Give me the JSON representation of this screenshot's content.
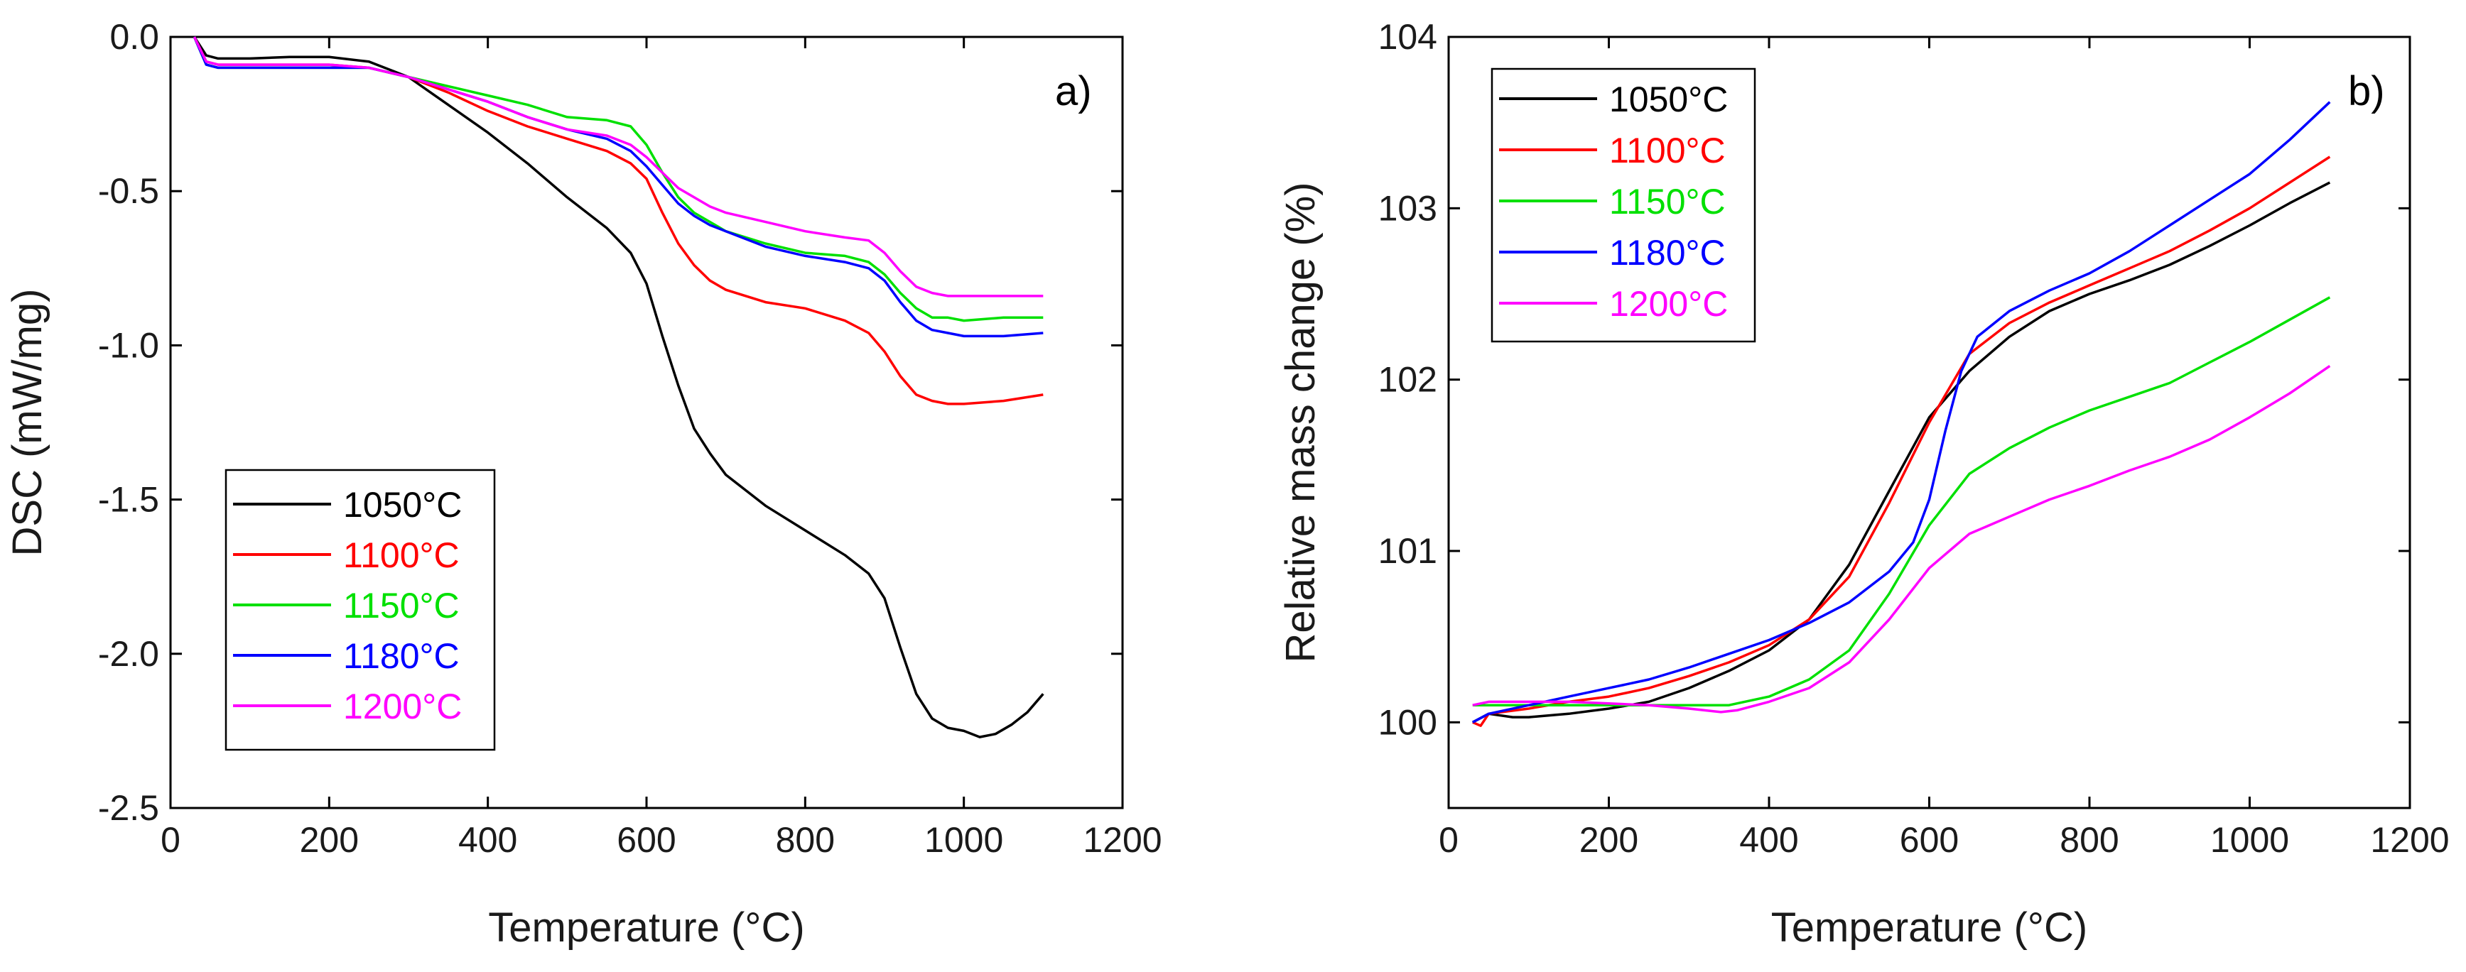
{
  "chart_data": [
    {
      "type": "line",
      "panel_label": "a)",
      "title": "",
      "xlabel": "Temperature (°C)",
      "ylabel": "DSC (mW/mg)",
      "xlim": [
        0,
        1200
      ],
      "ylim": [
        -2.5,
        0.0
      ],
      "xticks": [
        0,
        200,
        400,
        600,
        800,
        1000,
        1200
      ],
      "xtick_labels": [
        "0",
        "200",
        "400",
        "600",
        "800",
        "1000",
        "1200"
      ],
      "yticks": [
        0.0,
        -0.5,
        -1.0,
        -1.5,
        -2.0,
        -2.5
      ],
      "ytick_labels": [
        "0.0",
        "-0.5",
        "-1.0",
        "-1.5",
        "-2.0",
        "-2.5"
      ],
      "legend_position": "bottom-left",
      "grid": false,
      "series": [
        {
          "name": "1050°C",
          "color": "#000000",
          "x": [
            30,
            45,
            60,
            100,
            150,
            200,
            250,
            300,
            350,
            400,
            450,
            500,
            550,
            580,
            600,
            620,
            640,
            660,
            680,
            700,
            750,
            800,
            850,
            880,
            900,
            920,
            940,
            960,
            980,
            1000,
            1020,
            1040,
            1060,
            1080,
            1100
          ],
          "y": [
            0,
            -0.06,
            -0.07,
            -0.07,
            -0.065,
            -0.065,
            -0.08,
            -0.13,
            -0.22,
            -0.31,
            -0.41,
            -0.52,
            -0.62,
            -0.7,
            -0.8,
            -0.97,
            -1.13,
            -1.27,
            -1.35,
            -1.42,
            -1.52,
            -1.6,
            -1.68,
            -1.74,
            -1.82,
            -1.98,
            -2.13,
            -2.21,
            -2.24,
            -2.25,
            -2.27,
            -2.26,
            -2.23,
            -2.19,
            -2.13
          ]
        },
        {
          "name": "1100°C",
          "color": "#ff0000",
          "x": [
            30,
            45,
            60,
            100,
            150,
            200,
            250,
            300,
            350,
            400,
            450,
            500,
            550,
            580,
            600,
            620,
            640,
            660,
            680,
            700,
            750,
            800,
            850,
            880,
            900,
            920,
            940,
            960,
            980,
            1000,
            1050,
            1100
          ],
          "y": [
            0,
            -0.08,
            -0.09,
            -0.09,
            -0.09,
            -0.09,
            -0.1,
            -0.13,
            -0.18,
            -0.24,
            -0.29,
            -0.33,
            -0.37,
            -0.41,
            -0.46,
            -0.57,
            -0.67,
            -0.74,
            -0.79,
            -0.82,
            -0.86,
            -0.88,
            -0.92,
            -0.96,
            -1.02,
            -1.1,
            -1.16,
            -1.18,
            -1.19,
            -1.19,
            -1.18,
            -1.16
          ]
        },
        {
          "name": "1150°C",
          "color": "#00e000",
          "x": [
            30,
            45,
            60,
            100,
            150,
            200,
            250,
            300,
            350,
            400,
            450,
            500,
            550,
            580,
            600,
            620,
            640,
            660,
            680,
            700,
            750,
            800,
            850,
            880,
            900,
            920,
            940,
            960,
            980,
            1000,
            1050,
            1100
          ],
          "y": [
            0,
            -0.09,
            -0.1,
            -0.1,
            -0.1,
            -0.1,
            -0.1,
            -0.13,
            -0.16,
            -0.19,
            -0.22,
            -0.26,
            -0.27,
            -0.29,
            -0.35,
            -0.44,
            -0.52,
            -0.57,
            -0.6,
            -0.63,
            -0.67,
            -0.7,
            -0.71,
            -0.73,
            -0.77,
            -0.83,
            -0.88,
            -0.91,
            -0.91,
            -0.92,
            -0.91,
            -0.91
          ]
        },
        {
          "name": "1180°C",
          "color": "#0000ff",
          "x": [
            30,
            45,
            60,
            100,
            150,
            200,
            250,
            300,
            350,
            400,
            450,
            500,
            550,
            580,
            600,
            620,
            640,
            660,
            680,
            700,
            750,
            800,
            850,
            880,
            900,
            920,
            940,
            960,
            980,
            1000,
            1050,
            1100
          ],
          "y": [
            0,
            -0.09,
            -0.1,
            -0.1,
            -0.1,
            -0.1,
            -0.1,
            -0.13,
            -0.17,
            -0.21,
            -0.26,
            -0.3,
            -0.33,
            -0.37,
            -0.42,
            -0.48,
            -0.54,
            -0.58,
            -0.61,
            -0.63,
            -0.68,
            -0.71,
            -0.73,
            -0.75,
            -0.79,
            -0.86,
            -0.92,
            -0.95,
            -0.96,
            -0.97,
            -0.97,
            -0.96
          ]
        },
        {
          "name": "1200°C",
          "color": "#ff00ff",
          "x": [
            30,
            45,
            60,
            100,
            150,
            200,
            250,
            300,
            350,
            400,
            450,
            500,
            550,
            580,
            600,
            620,
            640,
            660,
            680,
            700,
            750,
            800,
            850,
            880,
            900,
            920,
            940,
            960,
            980,
            1000,
            1050,
            1100
          ],
          "y": [
            0,
            -0.08,
            -0.09,
            -0.09,
            -0.09,
            -0.09,
            -0.1,
            -0.13,
            -0.17,
            -0.21,
            -0.26,
            -0.3,
            -0.32,
            -0.35,
            -0.39,
            -0.44,
            -0.49,
            -0.52,
            -0.55,
            -0.57,
            -0.6,
            -0.63,
            -0.65,
            -0.66,
            -0.7,
            -0.76,
            -0.81,
            -0.83,
            -0.84,
            -0.84,
            -0.84,
            -0.84
          ]
        }
      ]
    },
    {
      "type": "line",
      "panel_label": "b)",
      "title": "",
      "xlabel": "Temperature (°C)",
      "ylabel": "Relative mass change (%)",
      "xlim": [
        0,
        1200
      ],
      "ylim": [
        99.5,
        104
      ],
      "xticks": [
        0,
        200,
        400,
        600,
        800,
        1000,
        1200
      ],
      "xtick_labels": [
        "0",
        "200",
        "400",
        "600",
        "800",
        "1000",
        "1200"
      ],
      "yticks": [
        100,
        101,
        102,
        103,
        104
      ],
      "ytick_labels": [
        "100",
        "101",
        "102",
        "103",
        "104"
      ],
      "legend_position": "top-left",
      "grid": false,
      "series": [
        {
          "name": "1050°C",
          "color": "#000000",
          "x": [
            30,
            50,
            80,
            100,
            150,
            200,
            250,
            300,
            350,
            400,
            450,
            500,
            550,
            600,
            650,
            700,
            750,
            800,
            850,
            900,
            950,
            1000,
            1050,
            1100
          ],
          "y": [
            100.0,
            100.05,
            100.03,
            100.03,
            100.05,
            100.08,
            100.12,
            100.2,
            100.3,
            100.42,
            100.6,
            100.92,
            101.35,
            101.78,
            102.05,
            102.25,
            102.4,
            102.5,
            102.58,
            102.67,
            102.78,
            102.9,
            103.03,
            103.15
          ]
        },
        {
          "name": "1100°C",
          "color": "#ff0000",
          "x": [
            30,
            40,
            50,
            100,
            150,
            200,
            250,
            300,
            350,
            400,
            450,
            500,
            550,
            600,
            650,
            700,
            750,
            800,
            850,
            900,
            950,
            1000,
            1050,
            1100
          ],
          "y": [
            100.0,
            99.98,
            100.05,
            100.08,
            100.12,
            100.15,
            100.2,
            100.27,
            100.35,
            100.45,
            100.6,
            100.85,
            101.28,
            101.75,
            102.15,
            102.33,
            102.45,
            102.55,
            102.65,
            102.75,
            102.87,
            103.0,
            103.15,
            103.3
          ]
        },
        {
          "name": "1150°C",
          "color": "#00e000",
          "x": [
            30,
            50,
            100,
            150,
            200,
            250,
            300,
            350,
            400,
            450,
            500,
            550,
            600,
            650,
            700,
            750,
            800,
            850,
            900,
            950,
            1000,
            1050,
            1100
          ],
          "y": [
            100.1,
            100.1,
            100.1,
            100.1,
            100.1,
            100.1,
            100.1,
            100.1,
            100.15,
            100.25,
            100.42,
            100.75,
            101.15,
            101.45,
            101.6,
            101.72,
            101.82,
            101.9,
            101.98,
            102.1,
            102.22,
            102.35,
            102.48
          ]
        },
        {
          "name": "1180°C",
          "color": "#0000ff",
          "x": [
            30,
            50,
            100,
            150,
            200,
            250,
            300,
            350,
            400,
            450,
            500,
            550,
            580,
            600,
            620,
            640,
            660,
            700,
            750,
            800,
            850,
            900,
            950,
            1000,
            1050,
            1100
          ],
          "y": [
            100.0,
            100.05,
            100.1,
            100.15,
            100.2,
            100.25,
            100.32,
            100.4,
            100.48,
            100.58,
            100.7,
            100.88,
            101.05,
            101.3,
            101.7,
            102.05,
            102.25,
            102.4,
            102.52,
            102.62,
            102.75,
            102.9,
            103.05,
            103.2,
            103.4,
            103.62
          ]
        },
        {
          "name": "1200°C",
          "color": "#ff00ff",
          "x": [
            30,
            50,
            100,
            150,
            200,
            250,
            300,
            340,
            360,
            400,
            450,
            500,
            550,
            600,
            650,
            700,
            750,
            800,
            850,
            900,
            950,
            1000,
            1050,
            1100
          ],
          "y": [
            100.1,
            100.12,
            100.12,
            100.12,
            100.11,
            100.1,
            100.08,
            100.06,
            100.07,
            100.12,
            100.2,
            100.35,
            100.6,
            100.9,
            101.1,
            101.2,
            101.3,
            101.38,
            101.47,
            101.55,
            101.65,
            101.78,
            101.92,
            102.08
          ]
        }
      ]
    }
  ]
}
